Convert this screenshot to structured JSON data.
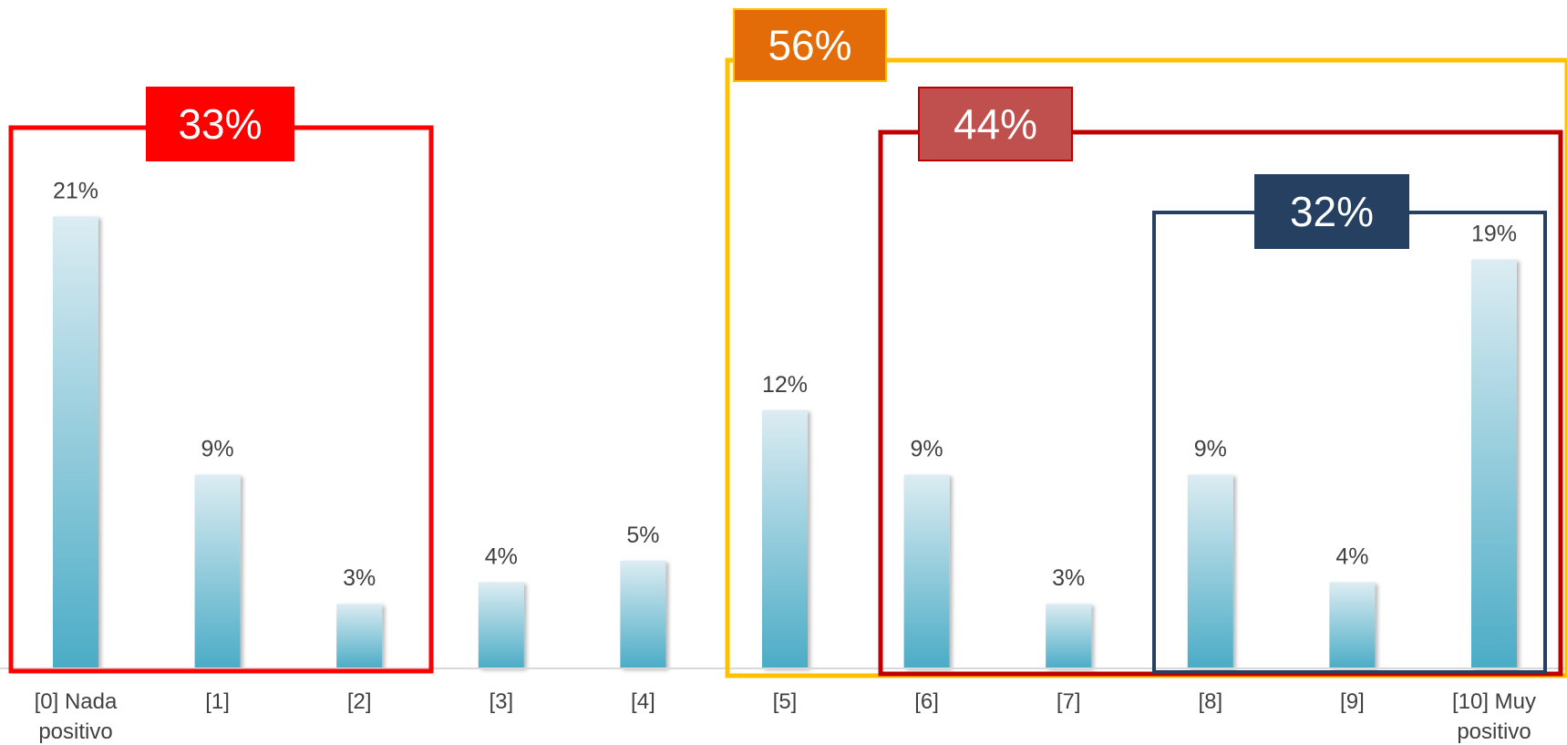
{
  "chart_data": {
    "type": "bar",
    "categories": [
      [
        "[0] Nada",
        "positivo"
      ],
      [
        "[1]"
      ],
      [
        "[2]"
      ],
      [
        "[3]"
      ],
      [
        "[4]"
      ],
      [
        "[5]"
      ],
      [
        "[6]"
      ],
      [
        "[7]"
      ],
      [
        "[8]"
      ],
      [
        "[9]"
      ],
      [
        "[10] Muy",
        "positivo"
      ]
    ],
    "values": [
      21,
      9,
      3,
      4,
      5,
      12,
      9,
      3,
      9,
      4,
      19
    ],
    "value_labels": [
      "21%",
      "9%",
      "3%",
      "4%",
      "5%",
      "12%",
      "9%",
      "3%",
      "9%",
      "4%",
      "19%"
    ],
    "ylim": [
      0,
      25
    ],
    "grid": false,
    "bar_gradient": {
      "top": "#dcecf2",
      "bottom": "#4bacc6"
    },
    "baseline_color": "#d9d9d9",
    "groups": [
      {
        "label": "33%",
        "from": 0,
        "to": 2,
        "color": "#ff0000",
        "label_bg": "#ff0000"
      },
      {
        "label": "56%",
        "from": 5,
        "to": 10,
        "color": "#ffc000",
        "label_bg": "#e36c09"
      },
      {
        "label": "44%",
        "from": 6,
        "to": 10,
        "color": "#c00000",
        "label_bg": "#c0504d"
      },
      {
        "label": "32%",
        "from": 8,
        "to": 10,
        "color": "#254061",
        "label_bg": "#254061"
      }
    ]
  }
}
